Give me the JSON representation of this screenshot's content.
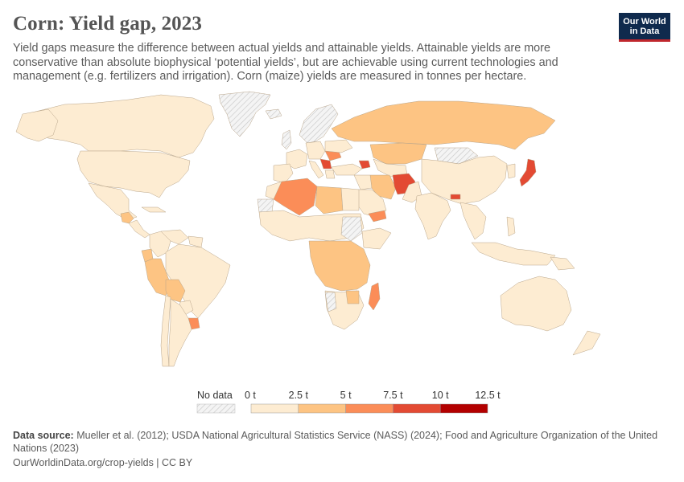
{
  "header": {
    "title": "Corn: Yield gap, 2023",
    "subtitle": "Yield gaps measure the difference between actual yields and attainable yields. Attainable yields are more conservative than absolute biophysical ‘potential yields’, but are achievable using current technologies and management (e.g. fertilizers and irrigation). Corn (maize) yields are measured in tonnes per hectare.",
    "logo_line1": "Our World",
    "logo_line2": "in Data"
  },
  "legend": {
    "no_data_label": "No data",
    "ticks": [
      "0 t",
      "2.5 t",
      "5 t",
      "7.5 t",
      "10 t",
      "12.5 t"
    ],
    "bins": [
      {
        "from": 0,
        "to": 2.5,
        "color": "#fdecd2"
      },
      {
        "from": 2.5,
        "to": 5,
        "color": "#fdc483"
      },
      {
        "from": 5,
        "to": 7.5,
        "color": "#fb8d58"
      },
      {
        "from": 7.5,
        "to": 10,
        "color": "#e34a33"
      },
      {
        "from": 10,
        "to": 12.5,
        "color": "#b30000"
      }
    ],
    "no_data_color": "#e6e6e6"
  },
  "footer": {
    "source_label": "Data source:",
    "source_text": " Mueller et al. (2012); USDA National Agricultural Statistics Service (NASS) (2024); Food and Agriculture Organization of the United Nations (2023)",
    "url": "OurWorldinData.org/crop-yields | CC BY"
  }
}
